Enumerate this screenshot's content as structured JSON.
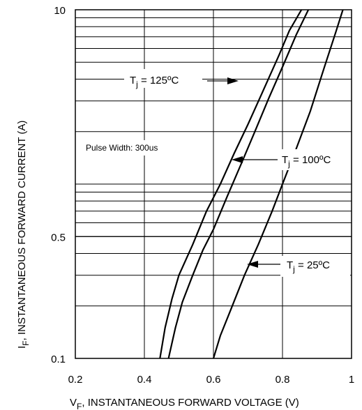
{
  "chart_data": {
    "type": "line",
    "x_axis": {
      "scale": "linear",
      "range": [
        0.2,
        1.0
      ],
      "ticks": [
        {
          "value": 0.2,
          "label": "0.2"
        },
        {
          "value": 0.4,
          "label": "0.4"
        },
        {
          "value": 0.6,
          "label": "0.6"
        },
        {
          "value": 0.8,
          "label": "0.8"
        },
        {
          "value": 1.0,
          "label": "1"
        }
      ],
      "label": {
        "main": "V",
        "sub": "F",
        "rest": ", INSTANTANEOUS FORWARD VOLTAGE (V)"
      }
    },
    "y_axis": {
      "scale": "log",
      "range": [
        0.1,
        10
      ],
      "ticks": [
        {
          "value": 0.1,
          "label": "0.1"
        },
        {
          "value": 0.5,
          "label": "0.5"
        },
        {
          "value": 10,
          "label": "10"
        }
      ],
      "label": {
        "main": "I",
        "sub": "F",
        "rest": ", INSTANTANEOUS FORWARD CURRENT (A)"
      }
    },
    "grid": true,
    "note": "Pulse Width: 300us",
    "series": [
      {
        "name": "T_j = 125ºC",
        "label": {
          "pre": "T",
          "sub": "j",
          "post": " = 125ºC"
        },
        "points": [
          [
            0.445,
            0.1
          ],
          [
            0.46,
            0.15
          ],
          [
            0.48,
            0.22
          ],
          [
            0.5,
            0.3
          ],
          [
            0.54,
            0.45
          ],
          [
            0.58,
            0.7
          ],
          [
            0.62,
            1.0
          ],
          [
            0.66,
            1.5
          ],
          [
            0.7,
            2.2
          ],
          [
            0.74,
            3.3
          ],
          [
            0.79,
            5.5
          ],
          [
            0.82,
            7.6
          ],
          [
            0.855,
            10
          ]
        ]
      },
      {
        "name": "T_j = 100ºC",
        "label": {
          "pre": "T",
          "sub": "j",
          "post": " = 100ºC"
        },
        "points": [
          [
            0.47,
            0.1
          ],
          [
            0.49,
            0.15
          ],
          [
            0.51,
            0.21
          ],
          [
            0.54,
            0.3
          ],
          [
            0.57,
            0.42
          ],
          [
            0.6,
            0.55
          ],
          [
            0.64,
            0.85
          ],
          [
            0.68,
            1.3
          ],
          [
            0.72,
            2.0
          ],
          [
            0.76,
            3.1
          ],
          [
            0.8,
            4.7
          ],
          [
            0.84,
            7.2
          ],
          [
            0.875,
            10
          ]
        ]
      },
      {
        "name": "T_j = 25ºC",
        "label": {
          "pre": "T",
          "sub": "j",
          "post": " = 25ºC"
        },
        "points": [
          [
            0.6,
            0.1
          ],
          [
            0.62,
            0.135
          ],
          [
            0.65,
            0.19
          ],
          [
            0.69,
            0.3
          ],
          [
            0.73,
            0.45
          ],
          [
            0.77,
            0.7
          ],
          [
            0.8,
            1.0
          ],
          [
            0.84,
            1.6
          ],
          [
            0.88,
            2.6
          ],
          [
            0.92,
            4.6
          ],
          [
            0.955,
            7.5
          ],
          [
            0.975,
            10
          ]
        ]
      }
    ]
  }
}
